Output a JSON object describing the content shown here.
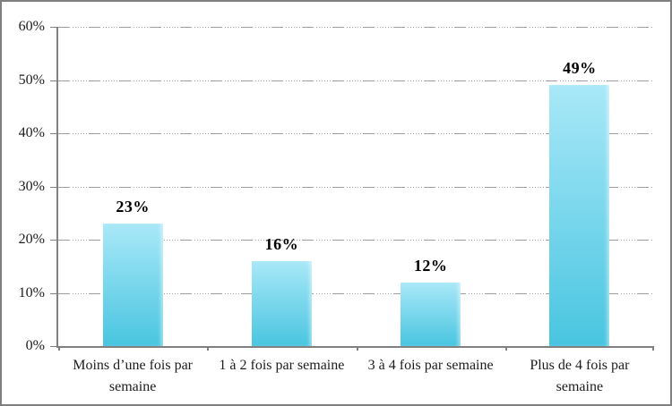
{
  "chart_data": {
    "type": "bar",
    "title": "",
    "categories": [
      "Moins d’une fois par semaine",
      "1 à 2 fois par semaine",
      "3 à 4 fois par semaine",
      "Plus de 4 fois par semaine"
    ],
    "values": [
      23,
      16,
      12,
      49
    ],
    "value_labels": [
      "23%",
      "16%",
      "12%",
      "49%"
    ],
    "xlabel": "",
    "ylabel": "",
    "ylim": [
      0,
      60
    ],
    "ytick_step": 10,
    "ytick_labels": [
      "0%",
      "10%",
      "20%",
      "30%",
      "40%",
      "50%",
      "60%"
    ],
    "grid": "horizontal dash-dot",
    "legend": "none",
    "colors": {
      "bar_gradient_top": "#a9e8f8",
      "bar_gradient_bottom": "#49c5e0",
      "axis": "#808080",
      "gridline": "#9e9e9e",
      "text": "#1c1c1c",
      "value_label_text": "#000000",
      "frame_border": "#7f7f7f",
      "background": "#ffffff"
    }
  }
}
